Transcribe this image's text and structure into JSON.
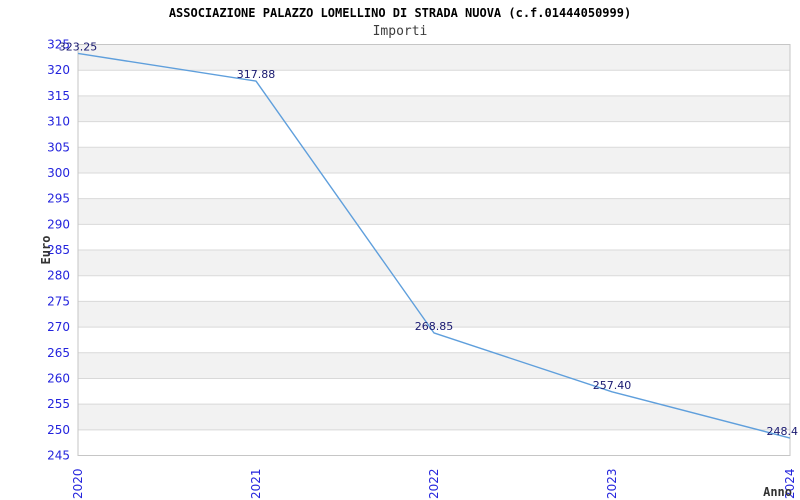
{
  "header": {
    "title": "ASSOCIAZIONE PALAZZO LOMELLINO DI STRADA NUOVA (c.f.01444050999)",
    "subtitle": "Importi"
  },
  "chart_data": {
    "type": "line",
    "title": "ASSOCIAZIONE PALAZZO LOMELLINO DI STRADA NUOVA (c.f.01444050999)",
    "subtitle": "Importi",
    "x": [
      "2020",
      "2021",
      "2022",
      "2023",
      "2024"
    ],
    "series": [
      {
        "name": "Importi",
        "values": [
          323.25,
          317.88,
          268.85,
          257.4,
          248.4
        ]
      }
    ],
    "point_labels": [
      "323.25",
      "317.88",
      "268.85",
      "257.40",
      "248.4"
    ],
    "xlabel": "Anno",
    "ylabel": "Euro",
    "ylim": [
      245,
      325
    ],
    "ytick_step": 5,
    "grid": "horizontal-bands-alternating",
    "legend": "none",
    "colors": {
      "line": "#5f9fdc",
      "tick_label": "#2424dd",
      "point_label": "#191970",
      "band": "#f2f2f2",
      "band_alt": "#ffffff",
      "gridline": "#d9d9d9",
      "border": "#c6c6c6",
      "title": "#000000",
      "subtitle": "#3d3d3d",
      "axis_title": "#333333",
      "background": "#ffffff"
    }
  }
}
